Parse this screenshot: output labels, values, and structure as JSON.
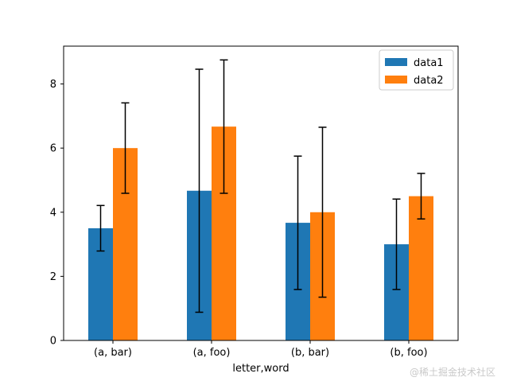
{
  "chart_data": {
    "type": "bar",
    "title": "",
    "xlabel": "letter,word",
    "ylabel": "",
    "categories": [
      "(a, bar)",
      "(a, foo)",
      "(b, bar)",
      "(b, foo)"
    ],
    "series": [
      {
        "name": "data1",
        "color": "#1f77b4",
        "values": [
          3.5,
          4.67,
          3.67,
          3.0
        ],
        "err": [
          0.71,
          3.79,
          2.08,
          1.41
        ]
      },
      {
        "name": "data2",
        "color": "#ff7f0e",
        "values": [
          6.0,
          6.67,
          4.0,
          4.5
        ],
        "err": [
          1.41,
          2.08,
          2.65,
          0.71
        ]
      }
    ],
    "ylim": [
      0,
      9.18
    ],
    "yticks": [
      0,
      2,
      4,
      6,
      8
    ],
    "grid": false,
    "legend_position": "top-right",
    "error_bar_color": "#000000"
  },
  "watermark": "@稀土掘金技术社区"
}
